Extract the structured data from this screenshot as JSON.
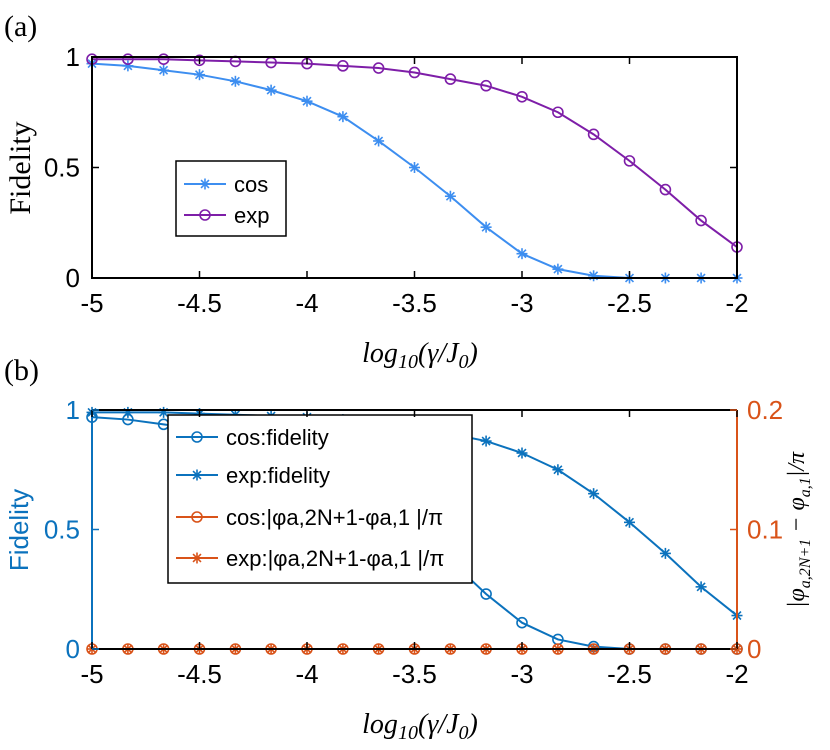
{
  "colors": {
    "a_cos": "#3d8ef0",
    "a_exp": "#7e1ea8",
    "b_fid": "#0b72bd",
    "b_phase": "#d95319",
    "axis": "#000000"
  },
  "chart_data": [
    {
      "id": "a",
      "panel_label": "(a)",
      "type": "line",
      "xlabel": "log10(γ/J0)",
      "ylabel": "Fidelity",
      "xlim": [
        -5,
        -2
      ],
      "ylim": [
        0,
        1
      ],
      "xticks": [
        "-5",
        "-4.5",
        "-4",
        "-3.5",
        "-3",
        "-2.5",
        "-2"
      ],
      "yticks": [
        "0",
        "0.5",
        "1"
      ],
      "legend_position": "center-left",
      "series": [
        {
          "name": "cos",
          "marker": "star",
          "x": [
            -5,
            -4.833,
            -4.667,
            -4.5,
            -4.333,
            -4.167,
            -4.0,
            -3.833,
            -3.667,
            -3.5,
            -3.333,
            -3.167,
            -3.0,
            -2.833,
            -2.667,
            -2.5,
            -2.333,
            -2.167,
            -2.0
          ],
          "values": [
            0.97,
            0.96,
            0.94,
            0.92,
            0.89,
            0.85,
            0.8,
            0.73,
            0.62,
            0.5,
            0.37,
            0.23,
            0.11,
            0.04,
            0.01,
            0.0,
            0.0,
            0.0,
            0.0
          ]
        },
        {
          "name": "exp",
          "marker": "circle",
          "x": [
            -5,
            -4.833,
            -4.667,
            -4.5,
            -4.333,
            -4.167,
            -4.0,
            -3.833,
            -3.667,
            -3.5,
            -3.333,
            -3.167,
            -3.0,
            -2.833,
            -2.667,
            -2.5,
            -2.333,
            -2.167,
            -2.0
          ],
          "values": [
            0.99,
            0.99,
            0.99,
            0.985,
            0.98,
            0.975,
            0.97,
            0.96,
            0.95,
            0.93,
            0.9,
            0.87,
            0.82,
            0.75,
            0.65,
            0.53,
            0.4,
            0.26,
            0.14
          ]
        }
      ]
    },
    {
      "id": "b",
      "panel_label": "(b)",
      "type": "line",
      "xlabel": "log10(γ/J0)",
      "ylabel_left": "Fidelity",
      "ylabel_right": "|φa,2N+1 − φa,1|/π",
      "xlim": [
        -5,
        -2
      ],
      "ylim_left": [
        0,
        1
      ],
      "ylim_right": [
        0,
        0.2
      ],
      "xticks": [
        "-5",
        "-4.5",
        "-4",
        "-3.5",
        "-3",
        "-2.5",
        "-2"
      ],
      "yticks_left": [
        "0",
        "0.5",
        "1"
      ],
      "yticks_right": [
        "0",
        "0.1",
        "0.2"
      ],
      "legend_position": "center",
      "legend": [
        {
          "label": "cos:fidelity",
          "marker": "circle",
          "color_key": "b_fid"
        },
        {
          "label": "exp:fidelity",
          "marker": "star",
          "color_key": "b_fid"
        },
        {
          "label": "cos:|φa,2N+1-φa,1 |/π",
          "marker": "circle",
          "color_key": "b_phase"
        },
        {
          "label": "exp:|φa,2N+1-φa,1 |/π",
          "marker": "star",
          "color_key": "b_phase"
        }
      ],
      "series": [
        {
          "name": "cos:fidelity",
          "marker": "circle",
          "axis": "left",
          "x": [
            -5,
            -4.833,
            -4.667,
            -4.5,
            -4.333,
            -4.167,
            -4.0,
            -3.833,
            -3.667,
            -3.5,
            -3.333,
            -3.167,
            -3.0,
            -2.833,
            -2.667,
            -2.5,
            -2.333,
            -2.167,
            -2.0
          ],
          "values": [
            0.97,
            0.96,
            0.94,
            0.92,
            0.89,
            0.85,
            0.8,
            0.73,
            0.62,
            0.5,
            0.37,
            0.23,
            0.11,
            0.04,
            0.01,
            0.0,
            0.0,
            0.0,
            0.0
          ]
        },
        {
          "name": "exp:fidelity",
          "marker": "star",
          "axis": "left",
          "x": [
            -5,
            -4.833,
            -4.667,
            -4.5,
            -4.333,
            -4.167,
            -4.0,
            -3.833,
            -3.667,
            -3.5,
            -3.333,
            -3.167,
            -3.0,
            -2.833,
            -2.667,
            -2.5,
            -2.333,
            -2.167,
            -2.0
          ],
          "values": [
            0.99,
            0.99,
            0.99,
            0.985,
            0.98,
            0.975,
            0.97,
            0.96,
            0.95,
            0.93,
            0.9,
            0.87,
            0.82,
            0.75,
            0.65,
            0.53,
            0.4,
            0.26,
            0.14
          ]
        },
        {
          "name": "cos:|φa,2N+1-φa,1 |/π",
          "marker": "circle",
          "axis": "right",
          "x": [
            -5,
            -4.833,
            -4.667,
            -4.5,
            -4.333,
            -4.167,
            -4.0,
            -3.833,
            -3.667,
            -3.5,
            -3.333,
            -3.167,
            -3.0,
            -2.833,
            -2.667,
            -2.5,
            -2.333,
            -2.167,
            -2.0
          ],
          "values": [
            0,
            0,
            0,
            0,
            0,
            0,
            0,
            0,
            0,
            0,
            0,
            0,
            0,
            0,
            0,
            0,
            0,
            0,
            0
          ]
        },
        {
          "name": "exp:|φa,2N+1-φa,1 |/π",
          "marker": "star",
          "axis": "right",
          "x": [
            -5,
            -4.833,
            -4.667,
            -4.5,
            -4.333,
            -4.167,
            -4.0,
            -3.833,
            -3.667,
            -3.5,
            -3.333,
            -3.167,
            -3.0,
            -2.833,
            -2.667,
            -2.5,
            -2.333,
            -2.167,
            -2.0
          ],
          "values": [
            0,
            0,
            0,
            0,
            0,
            0,
            0,
            0,
            0,
            0,
            0,
            0,
            0,
            0,
            0,
            0,
            0,
            0,
            0
          ]
        }
      ]
    }
  ]
}
